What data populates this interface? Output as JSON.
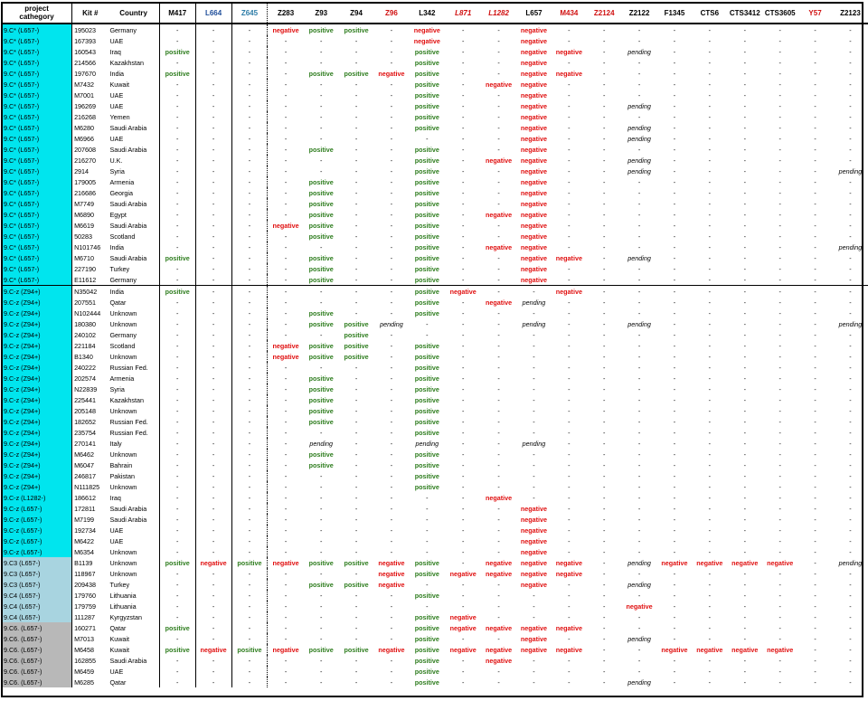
{
  "headers": [
    "project cathegory",
    "Kit #",
    "Country",
    "M417",
    "L664",
    "Z645",
    "Z283",
    "Z93",
    "Z94",
    "Z96",
    "L342",
    "L871",
    "L1282",
    "L657",
    "M434",
    "Z2124",
    "Z2122",
    "F1345",
    "CTS6",
    "CTS3412",
    "CTS3605",
    "Y57",
    "Z2123"
  ],
  "header_styles": [
    "",
    "",
    "",
    "",
    "h-blue",
    "h-teal",
    "",
    "",
    "",
    "h-red",
    "",
    "h-redit",
    "h-redit",
    "",
    "h-red",
    "h-red",
    "",
    "",
    "",
    "",
    "",
    "h-red",
    ""
  ],
  "colors": {
    "cyan": "#00e5ee",
    "lightblue": "#a8d4e0",
    "grey": "#b8b8b8",
    "positive": "#2e7d1e",
    "negative": "#e01010"
  },
  "rows": [
    {
      "cat": "9.C* (L657-)",
      "kit": "195023",
      "country": "Germany",
      "c": "cyan",
      "v": "-,-,-,N,P,P,-,N,-,-,N,-,-,-,-,-,-,-,-,-"
    },
    {
      "cat": "9.C* (L657-)",
      "kit": "167393",
      "country": "UAE",
      "c": "cyan",
      "v": "-,-,-,-,-,-,-,N,-,-,N,-,-,-,-,-,-,-,-,-"
    },
    {
      "cat": "9.C* (L657-)",
      "kit": "160543",
      "country": "Iraq",
      "c": "cyan",
      "v": "P,-,-,-,-,-,-,P,-,-,N,N,-,E,-,-,-,-,-,-"
    },
    {
      "cat": "9.C* (L657-)",
      "kit": "214566",
      "country": "Kazakhstan",
      "c": "cyan",
      "v": "-,-,-,-,-,-,-,P,-,-,N,-,-,-,-,-,-,-,-,-"
    },
    {
      "cat": "9.C* (L657-)",
      "kit": "197670",
      "country": "India",
      "c": "cyan",
      "v": "P,-,-,-,P,P,N,P,-,-,N,N,-,-,-,-,-,-,-,-"
    },
    {
      "cat": "9.C* (L657-)",
      "kit": "M7432",
      "country": "Kuwait",
      "c": "cyan",
      "v": "-,-,-,-,-,-,-,P,-,N,N,-,-,-,-,-,-,-,-,-"
    },
    {
      "cat": "9.C* (L657-)",
      "kit": "M7001",
      "country": "UAE",
      "c": "cyan",
      "v": "-,-,-,-,-,-,-,P,-,-,N,-,-,-,-,-,-,-,-,-"
    },
    {
      "cat": "9.C* (L657-)",
      "kit": "196269",
      "country": "UAE",
      "c": "cyan",
      "v": "-,-,-,-,-,-,-,P,-,-,N,-,-,E,-,-,-,-,-,-"
    },
    {
      "cat": "9.C* (L657-)",
      "kit": "216268",
      "country": "Yemen",
      "c": "cyan",
      "v": "-,-,-,-,-,-,-,P,-,-,N,-,-,-,-,-,-,-,-,-"
    },
    {
      "cat": "9.C* (L657-)",
      "kit": "M6280",
      "country": "Saudi Arabia",
      "c": "cyan",
      "v": "-,-,-,-,-,-,-,P,-,-,N,-,-,E,-,-,-,-,-,-"
    },
    {
      "cat": "9.C* (L657-)",
      "kit": "M6966",
      "country": "UAE",
      "c": "cyan",
      "v": "-,-,-,-,-,-,-,-,-,-,N,-,-,E,-,-,-,-,-,-"
    },
    {
      "cat": "9.C* (L657-)",
      "kit": "207608",
      "country": "Saudi Arabia",
      "c": "cyan",
      "v": "-,-,-,-,P,-,-,P,-,-,N,-,-,-,-,-,-,-,-,-"
    },
    {
      "cat": "9.C* (L657-)",
      "kit": "216270",
      "country": "U.K.",
      "c": "cyan",
      "v": "-,-,-,-,-,-,-,P,-,N,N,-,-,E,-,-,-,-,-,-"
    },
    {
      "cat": "9.C* (L657-)",
      "kit": "2914",
      "country": "Syria",
      "c": "cyan",
      "v": "-,-,-,-,-,-,-,P,-,-,N,-,-,E,-,-,-,-,-,E"
    },
    {
      "cat": "9.C* (L657-)",
      "kit": "179005",
      "country": "Armenia",
      "c": "cyan",
      "v": "-,-,-,-,P,-,-,P,-,-,N,-,-,-,-,-,-,-,-,-"
    },
    {
      "cat": "9.C* (L657-)",
      "kit": "216686",
      "country": "Georgia",
      "c": "cyan",
      "v": "-,-,-,-,P,-,-,P,-,-,N,-,-,-,-,-,-,-,-,-"
    },
    {
      "cat": "9.C* (L657-)",
      "kit": "M7749",
      "country": "Saudi Arabia",
      "c": "cyan",
      "v": "-,-,-,-,P,-,-,P,-,-,N,-,-,-,-,-,-,-,-,-"
    },
    {
      "cat": "9.C* (L657-)",
      "kit": "M6890",
      "country": "Egypt",
      "c": "cyan",
      "v": "-,-,-,-,P,-,-,P,-,N,N,-,-,-,-,-,-,-,-,-"
    },
    {
      "cat": "9.C* (L657-)",
      "kit": "M6619",
      "country": "Saudi Arabia",
      "c": "cyan",
      "v": "-,-,-,N,P,-,-,P,-,-,N,-,-,-,-,-,-,-,-,-"
    },
    {
      "cat": "9.C* (L657-)",
      "kit": "50283",
      "country": "Scotland",
      "c": "cyan",
      "v": "-,-,-,-,P,-,-,P,-,-,N,-,-,-,-,-,-,-,-,-"
    },
    {
      "cat": "9.C* (L657-)",
      "kit": "N101746",
      "country": "India",
      "c": "cyan",
      "v": "-,-,-,-,-,-,-,P,-,N,N,-,-,-,-,-,-,-,-,E"
    },
    {
      "cat": "9.C* (L657-)",
      "kit": "M6710",
      "country": "Saudi Arabia",
      "c": "cyan",
      "v": "P,-,-,-,P,-,-,P,-,-,N,N,-,E,-,-,-,-,-,-"
    },
    {
      "cat": "9.C* (L657-)",
      "kit": "227190",
      "country": "Turkey",
      "c": "cyan",
      "v": "-,-,-,-,P,-,-,P,-,-,N,-,-,-,-,-,-,-,-,-"
    },
    {
      "cat": "9.C* (L657-)",
      "kit": "E11612",
      "country": "Germany",
      "c": "cyan",
      "end": true,
      "v": "-,-,-,-,P,-,-,P,-,-,N,-,-,-,-,-,-,-,-,-"
    },
    {
      "cat": "9.C-z (Z94+)",
      "kit": "N35042",
      "country": "India",
      "c": "cyan",
      "v": "P,-,-,-,-,-,-,P,N,-,-,N,-,-,-,-,-,-,-,-"
    },
    {
      "cat": "9.C-z (Z94+)",
      "kit": "207551",
      "country": "Qatar",
      "c": "cyan",
      "v": "-,-,-,-,-,-,-,P,-,N,E,-,-,-,-,-,-,-,-,-"
    },
    {
      "cat": "9.C-z (Z94+)",
      "kit": "N102444",
      "country": "Unknown",
      "c": "cyan",
      "v": "-,-,-,-,P,-,-,P,-,-,-,-,-,-,-,-,-,-,-,-"
    },
    {
      "cat": "9.C-z (Z94+)",
      "kit": "180380",
      "country": "Unknown",
      "c": "cyan",
      "v": "-,-,-,-,P,P,E,-,-,-,E,-,-,E,-,-,-,-,-,E"
    },
    {
      "cat": "9.C-z (Z94+)",
      "kit": "240102",
      "country": "Germany",
      "c": "cyan",
      "v": "-,-,-,-,-,P,-,-,-,-,-,-,-,-,-,-,-,-,-,-"
    },
    {
      "cat": "9.C-z (Z94+)",
      "kit": "221184",
      "country": "Scotland",
      "c": "cyan",
      "v": "-,-,-,N,P,P,-,P,-,-,-,-,-,-,-,-,-,-,-,-"
    },
    {
      "cat": "9.C-z (Z94+)",
      "kit": "B1340",
      "country": "Unknown",
      "c": "cyan",
      "v": "-,-,-,N,P,P,-,P,-,-,-,-,-,-,-,-,-,-,-,-"
    },
    {
      "cat": "9.C-z (Z94+)",
      "kit": "240222",
      "country": "Russian Fed.",
      "c": "cyan",
      "v": "-,-,-,-,-,-,-,P,-,-,-,-,-,-,-,-,-,-,-,-"
    },
    {
      "cat": "9.C-z (Z94+)",
      "kit": "202574",
      "country": "Armenia",
      "c": "cyan",
      "v": "-,-,-,-,P,-,-,P,-,-,-,-,-,-,-,-,-,-,-,-"
    },
    {
      "cat": "9.C-z (Z94+)",
      "kit": "N22839",
      "country": "Syria",
      "c": "cyan",
      "v": "-,-,-,-,P,-,-,P,-,-,-,-,-,-,-,-,-,-,-,-"
    },
    {
      "cat": "9.C-z (Z94+)",
      "kit": "225441",
      "country": "Kazakhstan",
      "c": "cyan",
      "v": "-,-,-,-,P,-,-,P,-,-,-,-,-,-,-,-,-,-,-,-"
    },
    {
      "cat": "9.C-z (Z94+)",
      "kit": "205148",
      "country": "Unknown",
      "c": "cyan",
      "v": "-,-,-,-,P,-,-,P,-,-,-,-,-,-,-,-,-,-,-,-"
    },
    {
      "cat": "9.C-z (Z94+)",
      "kit": "182652",
      "country": "Russian Fed.",
      "c": "cyan",
      "v": "-,-,-,-,P,-,-,P,-,-,-,-,-,-,-,-,-,-,-,-"
    },
    {
      "cat": "9.C-z (Z94+)",
      "kit": "235754",
      "country": "Russian Fed.",
      "c": "cyan",
      "v": "-,-,-,-,-,-,-,P,-,-,-,-,-,-,-,-,-,-,-,-"
    },
    {
      "cat": "9.C-z (Z94+)",
      "kit": "270141",
      "country": "Italy",
      "c": "cyan",
      "v": "-,-,-,-,E,-,-,E,-,-,E,-,-,-,-,-,-,-,-,-"
    },
    {
      "cat": "9.C-z (Z94+)",
      "kit": "M6462",
      "country": "Unknown",
      "c": "cyan",
      "v": "-,-,-,-,P,-,-,P,-,-,-,-,-,-,-,-,-,-,-,-"
    },
    {
      "cat": "9.C-z (Z94+)",
      "kit": "M6047",
      "country": "Bahrain",
      "c": "cyan",
      "v": "-,-,-,-,P,-,-,P,-,-,-,-,-,-,-,-,-,-,-,-"
    },
    {
      "cat": "9.C-z (Z94+)",
      "kit": "246817",
      "country": "Pakistan",
      "c": "cyan",
      "v": "-,-,-,-,-,-,-,P,-,-,-,-,-,-,-,-,-,-,-,-"
    },
    {
      "cat": "9.C-z (Z94+)",
      "kit": "N111825",
      "country": "Unknown",
      "c": "cyan",
      "v": "-,-,-,-,-,-,-,P,-,-,-,-,-,-,-,-,-,-,-,-"
    },
    {
      "cat": "9.C-z (L1282-)",
      "kit": "186612",
      "country": "Iraq",
      "c": "cyan",
      "v": "-,-,-,-,-,-,-,-,-,N,-,-,-,-,-,-,-,-,-,-"
    },
    {
      "cat": "9.C-z (L657-)",
      "kit": "172811",
      "country": "Saudi Arabia",
      "c": "cyan",
      "v": "-,-,-,-,-,-,-,-,-,-,N,-,-,-,-,-,-,-,-,-"
    },
    {
      "cat": "9.C-z (L657-)",
      "kit": "M7199",
      "country": "Saudi Arabia",
      "c": "cyan",
      "v": "-,-,-,-,-,-,-,-,-,-,N,-,-,-,-,-,-,-,-,-"
    },
    {
      "cat": "9.C-z (L657-)",
      "kit": "192734",
      "country": "UAE",
      "c": "cyan",
      "v": "-,-,-,-,-,-,-,-,-,-,N,-,-,-,-,-,-,-,-,-"
    },
    {
      "cat": "9.C-z (L657-)",
      "kit": "M6422",
      "country": "UAE",
      "c": "cyan",
      "v": "-,-,-,-,-,-,-,-,-,-,N,-,-,-,-,-,-,-,-,-"
    },
    {
      "cat": "9.C-z (L657-)",
      "kit": "M6354",
      "country": "Unknown",
      "c": "cyan",
      "v": "-,-,-,-,-,-,-,-,-,-,N,-,-,-,-,-,-,-,-,-"
    },
    {
      "cat": "9.C3 (L657-)",
      "kit": "B1139",
      "country": "Unknown",
      "c": "lightblue",
      "v": "P,N,P,N,P,P,N,P,-,N,N,N,-,E,N,N,N,N,-,E"
    },
    {
      "cat": "9.C3 (L657-)",
      "kit": "118967",
      "country": "Unknown",
      "c": "lightblue",
      "v": "-,-,-,-,-,-,N,P,N,N,N,N,-,-,-,-,-,-,-,-"
    },
    {
      "cat": "9.C3 (L657-)",
      "kit": "209438",
      "country": "Turkey",
      "c": "lightblue",
      "v": "-,-,-,-,P,P,N,-,-,-,N,-,-,E,-,-,-,-,-,-"
    },
    {
      "cat": "9.C4 (L657-)",
      "kit": "179760",
      "country": "Lithuania",
      "c": "lightblue",
      "v": "-,-,-,-,-,-,-,P,-,-,-,-,-,-,-,-,-,-,-,-"
    },
    {
      "cat": "9.C4 (L657-)",
      "kit": "179759",
      "country": "Lithuania",
      "c": "lightblue",
      "v": "-,-,-,-,-,-,-,-,-,-,-,-,-,N,-,-,-,-,-,-"
    },
    {
      "cat": "9.C4 (L657-)",
      "kit": "111287",
      "country": "Kyrgyzstan",
      "c": "lightblue",
      "v": "-,-,-,-,-,-,-,P,N,-,-,-,-,-,-,-,-,-,-,-"
    },
    {
      "cat": "9.C6. (L657-)",
      "kit": "160271",
      "country": "Qatar",
      "c": "grey",
      "v": "P,-,-,-,-,-,-,P,N,N,N,N,-,-,-,-,-,-,-,-"
    },
    {
      "cat": "9.C6. (L657-)",
      "kit": "M7013",
      "country": "Kuwait",
      "c": "grey",
      "v": "-,-,-,-,-,-,-,P,-,-,N,-,-,E,-,-,-,-,-,-"
    },
    {
      "cat": "9.C6. (L657-)",
      "kit": "M6458",
      "country": "Kuwait",
      "c": "grey",
      "v": "P,N,P,N,P,P,N,P,N,N,N,N,-,-,N,N,N,N,-,-"
    },
    {
      "cat": "9.C6. (L657-)",
      "kit": "162855",
      "country": "Saudi Arabia",
      "c": "grey",
      "v": "-,-,-,-,-,-,-,P,-,N,-,-,-,-,-,-,-,-,-,-"
    },
    {
      "cat": "9.C6. (L657-)",
      "kit": "M6459",
      "country": "UAE",
      "c": "grey",
      "v": "-,-,-,-,-,-,-,P,-,-,-,-,-,-,-,-,-,-,-,-"
    },
    {
      "cat": "9.C6. (L657-)",
      "kit": "M6285",
      "country": "Qatar",
      "c": "grey",
      "v": "-,-,-,-,-,-,-,P,-,-,-,-,-,E,-,-,-,-,-,-"
    }
  ],
  "value_labels": {
    "P": "positive",
    "N": "negative",
    "E": "pending",
    "-": "-"
  }
}
